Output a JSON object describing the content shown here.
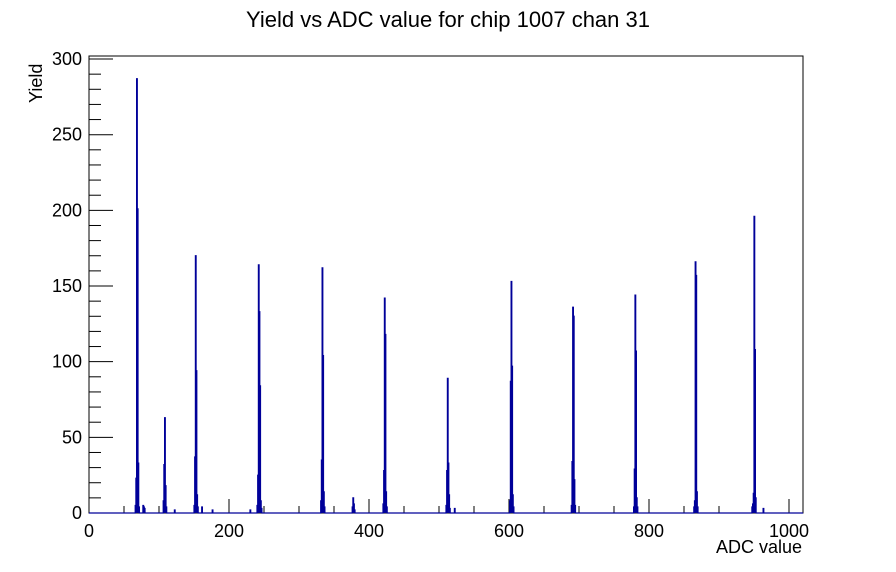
{
  "page": {
    "background_color": "#ffffff"
  },
  "chart_data": {
    "type": "bar",
    "style": "root-histogram-outline",
    "title": "Yield vs ADC value for chip 1007 chan 31",
    "xlabel": "ADC value",
    "ylabel": "Yield",
    "xlim": [
      0,
      1020
    ],
    "ylim": [
      0,
      302
    ],
    "x_major_ticks": [
      0,
      200,
      400,
      600,
      800,
      1000
    ],
    "x_minor_tick_step": 50,
    "y_major_ticks": [
      0,
      50,
      100,
      150,
      200,
      250,
      300
    ],
    "y_minor_tick_step": 10,
    "grid": false,
    "legend": "none",
    "line_color": "#000099",
    "axis_color": "#000000",
    "bin_width_adc": 1,
    "peaks": [
      {
        "adc": 68,
        "yield": 287
      },
      {
        "adc": 108,
        "yield": 63
      },
      {
        "adc": 152,
        "yield": 170
      },
      {
        "adc": 242,
        "yield": 164
      },
      {
        "adc": 333,
        "yield": 162
      },
      {
        "adc": 377,
        "yield": 10
      },
      {
        "adc": 422,
        "yield": 142
      },
      {
        "adc": 512,
        "yield": 89
      },
      {
        "adc": 603,
        "yield": 153
      },
      {
        "adc": 691,
        "yield": 136
      },
      {
        "adc": 780,
        "yield": 144
      },
      {
        "adc": 866,
        "yield": 166
      },
      {
        "adc": 950,
        "yield": 196
      }
    ],
    "bins": [
      [
        66,
        5
      ],
      [
        67,
        23
      ],
      [
        68,
        287
      ],
      [
        69,
        201
      ],
      [
        70,
        33
      ],
      [
        71,
        4
      ],
      [
        77,
        5
      ],
      [
        78,
        4
      ],
      [
        79,
        3
      ],
      [
        106,
        8
      ],
      [
        107,
        32
      ],
      [
        108,
        63
      ],
      [
        109,
        18
      ],
      [
        110,
        4
      ],
      [
        122,
        2
      ],
      [
        150,
        5
      ],
      [
        151,
        37
      ],
      [
        152,
        170
      ],
      [
        153,
        94
      ],
      [
        154,
        12
      ],
      [
        155,
        4
      ],
      [
        161,
        4
      ],
      [
        176,
        2
      ],
      [
        230,
        2
      ],
      [
        240,
        5
      ],
      [
        241,
        25
      ],
      [
        242,
        164
      ],
      [
        243,
        133
      ],
      [
        244,
        84
      ],
      [
        245,
        8
      ],
      [
        246,
        3
      ],
      [
        331,
        8
      ],
      [
        332,
        35
      ],
      [
        333,
        162
      ],
      [
        334,
        104
      ],
      [
        335,
        14
      ],
      [
        336,
        4
      ],
      [
        376,
        4
      ],
      [
        377,
        10
      ],
      [
        378,
        6
      ],
      [
        379,
        2
      ],
      [
        420,
        6
      ],
      [
        421,
        28
      ],
      [
        422,
        142
      ],
      [
        423,
        118
      ],
      [
        424,
        14
      ],
      [
        425,
        4
      ],
      [
        510,
        5
      ],
      [
        511,
        28
      ],
      [
        512,
        89
      ],
      [
        513,
        33
      ],
      [
        514,
        12
      ],
      [
        515,
        3
      ],
      [
        522,
        3
      ],
      [
        601,
        8
      ],
      [
        602,
        87
      ],
      [
        603,
        153
      ],
      [
        604,
        97
      ],
      [
        605,
        12
      ],
      [
        606,
        4
      ],
      [
        689,
        5
      ],
      [
        690,
        34
      ],
      [
        691,
        136
      ],
      [
        692,
        130
      ],
      [
        693,
        22
      ],
      [
        694,
        5
      ],
      [
        778,
        4
      ],
      [
        779,
        29
      ],
      [
        780,
        144
      ],
      [
        781,
        107
      ],
      [
        782,
        10
      ],
      [
        783,
        4
      ],
      [
        864,
        4
      ],
      [
        865,
        8
      ],
      [
        866,
        166
      ],
      [
        867,
        157
      ],
      [
        868,
        14
      ],
      [
        869,
        4
      ],
      [
        947,
        4
      ],
      [
        948,
        6
      ],
      [
        949,
        13
      ],
      [
        950,
        196
      ],
      [
        951,
        108
      ],
      [
        952,
        10
      ],
      [
        963,
        3
      ]
    ]
  }
}
